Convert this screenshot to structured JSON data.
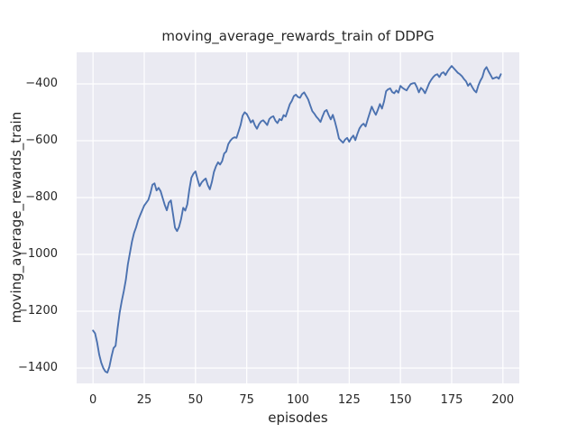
{
  "figure": {
    "background": "#ffffff"
  },
  "chart_data": {
    "type": "line",
    "title": "moving_average_rewards_train of DDPG",
    "xlabel": "episodes",
    "ylabel": "moving_average_rewards_train",
    "grid": true,
    "legend": "none",
    "style": {
      "axes_bg": "#eaeaf2",
      "grid_color": "#ffffff",
      "text_color": "#262626",
      "line_color": "#4c72b0"
    },
    "xlim": [
      -8,
      208
    ],
    "ylim": [
      -1454,
      -289
    ],
    "x_tick_values": [
      0,
      25,
      50,
      75,
      100,
      125,
      150,
      175,
      200
    ],
    "x_tick_labels": [
      "0",
      "25",
      "50",
      "75",
      "100",
      "125",
      "150",
      "175",
      "200"
    ],
    "y_tick_values": [
      -400,
      -600,
      -800,
      -1000,
      -1200,
      -1400
    ],
    "y_tick_labels": [
      "−400",
      "−600",
      "−800",
      "−1000",
      "−1200",
      "−1400"
    ],
    "series": [
      {
        "name": "moving_average_rewards_train",
        "color": "#4c72b0",
        "x_start": 0,
        "x_step": 1,
        "values": [
          -1268,
          -1278,
          -1310,
          -1352,
          -1381,
          -1400,
          -1412,
          -1416,
          -1395,
          -1360,
          -1330,
          -1322,
          -1260,
          -1205,
          -1165,
          -1130,
          -1090,
          -1035,
          -995,
          -955,
          -925,
          -905,
          -880,
          -862,
          -845,
          -828,
          -818,
          -808,
          -785,
          -755,
          -750,
          -775,
          -766,
          -778,
          -802,
          -826,
          -845,
          -818,
          -810,
          -857,
          -906,
          -918,
          -903,
          -875,
          -836,
          -846,
          -824,
          -772,
          -730,
          -716,
          -708,
          -736,
          -760,
          -747,
          -739,
          -733,
          -756,
          -771,
          -745,
          -710,
          -690,
          -676,
          -684,
          -672,
          -645,
          -638,
          -612,
          -600,
          -592,
          -588,
          -590,
          -568,
          -545,
          -512,
          -500,
          -506,
          -520,
          -536,
          -528,
          -546,
          -558,
          -542,
          -532,
          -528,
          -536,
          -545,
          -524,
          -517,
          -514,
          -530,
          -538,
          -524,
          -528,
          -510,
          -515,
          -494,
          -472,
          -460,
          -443,
          -438,
          -446,
          -449,
          -436,
          -430,
          -442,
          -455,
          -476,
          -496,
          -505,
          -516,
          -524,
          -534,
          -514,
          -497,
          -492,
          -510,
          -525,
          -509,
          -532,
          -560,
          -592,
          -600,
          -607,
          -596,
          -590,
          -604,
          -591,
          -582,
          -598,
          -576,
          -557,
          -546,
          -540,
          -550,
          -526,
          -503,
          -480,
          -496,
          -509,
          -491,
          -471,
          -487,
          -462,
          -426,
          -419,
          -416,
          -429,
          -433,
          -423,
          -431,
          -407,
          -414,
          -419,
          -423,
          -411,
          -401,
          -398,
          -397,
          -411,
          -430,
          -414,
          -421,
          -433,
          -416,
          -398,
          -386,
          -376,
          -369,
          -366,
          -376,
          -363,
          -359,
          -369,
          -356,
          -346,
          -337,
          -345,
          -353,
          -361,
          -366,
          -373,
          -383,
          -391,
          -407,
          -398,
          -411,
          -423,
          -430,
          -406,
          -389,
          -376,
          -351,
          -341,
          -356,
          -369,
          -382,
          -379,
          -376,
          -382,
          -366
        ]
      }
    ]
  }
}
